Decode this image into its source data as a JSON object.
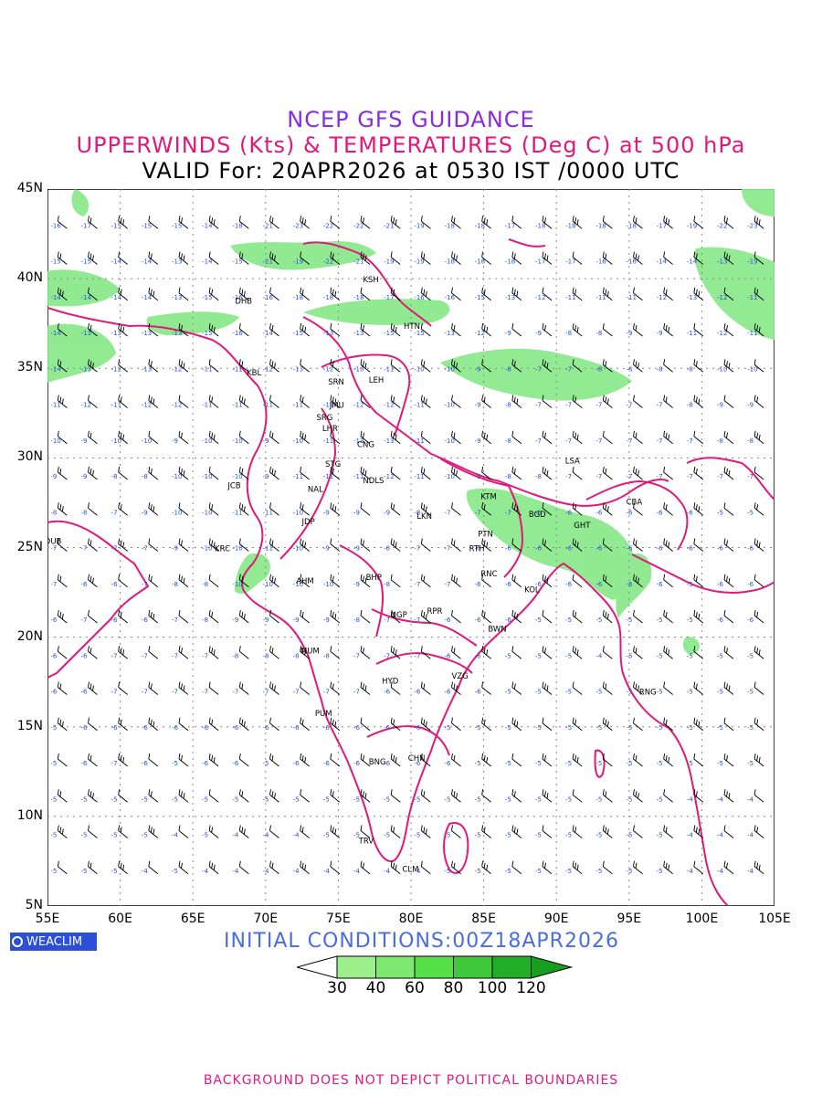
{
  "header": {
    "title": "NCEP GFS GUIDANCE",
    "subtitle": "UPPERWINDS (Kts) & TEMPERATURES (Deg C) at 500 hPa",
    "valid": "VALID For: 20APR2026 at 0530 IST /0000 UTC"
  },
  "axes": {
    "lat_labels": [
      "45N",
      "40N",
      "35N",
      "30N",
      "25N",
      "20N",
      "15N",
      "10N",
      "5N"
    ],
    "lon_labels": [
      "55E",
      "60E",
      "65E",
      "70E",
      "75E",
      "80E",
      "85E",
      "90E",
      "95E",
      "100E",
      "105E"
    ],
    "lat_range": [
      5,
      45
    ],
    "lon_range": [
      55,
      105
    ],
    "grid": "dotted"
  },
  "stations": [
    {
      "code": "KSH",
      "lon": 77.2,
      "lat": 39.8
    },
    {
      "code": "DHB",
      "lon": 68.4,
      "lat": 38.6
    },
    {
      "code": "HTN",
      "lon": 80.0,
      "lat": 37.2
    },
    {
      "code": "KBL",
      "lon": 69.2,
      "lat": 34.6
    },
    {
      "code": "SRN",
      "lon": 74.8,
      "lat": 34.1
    },
    {
      "code": "LEH",
      "lon": 77.6,
      "lat": 34.2
    },
    {
      "code": "JMU",
      "lon": 74.9,
      "lat": 32.8
    },
    {
      "code": "SRG",
      "lon": 74.0,
      "lat": 32.1
    },
    {
      "code": "LHR",
      "lon": 74.4,
      "lat": 31.5
    },
    {
      "code": "CNG",
      "lon": 76.8,
      "lat": 30.6
    },
    {
      "code": "LSA",
      "lon": 91.1,
      "lat": 29.7
    },
    {
      "code": "STG",
      "lon": 74.6,
      "lat": 29.5
    },
    {
      "code": "JCB",
      "lon": 67.9,
      "lat": 28.3
    },
    {
      "code": "NAL",
      "lon": 73.4,
      "lat": 28.1
    },
    {
      "code": "NDLS",
      "lon": 77.2,
      "lat": 28.6
    },
    {
      "code": "CBA",
      "lon": 95.3,
      "lat": 27.4
    },
    {
      "code": "KTM",
      "lon": 85.3,
      "lat": 27.7
    },
    {
      "code": "BGD",
      "lon": 88.6,
      "lat": 26.7
    },
    {
      "code": "GHT",
      "lon": 91.7,
      "lat": 26.1
    },
    {
      "code": "LKN",
      "lon": 80.9,
      "lat": 26.6
    },
    {
      "code": "JDP",
      "lon": 73.0,
      "lat": 26.3
    },
    {
      "code": "PTN",
      "lon": 85.1,
      "lat": 25.6
    },
    {
      "code": "DUB",
      "lon": 55.3,
      "lat": 25.2
    },
    {
      "code": "KRC",
      "lon": 67.0,
      "lat": 24.8
    },
    {
      "code": "RTH",
      "lon": 84.5,
      "lat": 24.8
    },
    {
      "code": "BHP",
      "lon": 77.4,
      "lat": 23.2
    },
    {
      "code": "AHM",
      "lon": 72.6,
      "lat": 23.0
    },
    {
      "code": "RNC",
      "lon": 85.3,
      "lat": 23.4
    },
    {
      "code": "KOL",
      "lon": 88.3,
      "lat": 22.5
    },
    {
      "code": "NGP",
      "lon": 79.1,
      "lat": 21.1
    },
    {
      "code": "RPR",
      "lon": 81.6,
      "lat": 21.3
    },
    {
      "code": "BWN",
      "lon": 85.8,
      "lat": 20.3
    },
    {
      "code": "MUM",
      "lon": 72.9,
      "lat": 19.1
    },
    {
      "code": "HYD",
      "lon": 78.5,
      "lat": 17.4
    },
    {
      "code": "VZG",
      "lon": 83.3,
      "lat": 17.7
    },
    {
      "code": "RNG",
      "lon": 96.2,
      "lat": 16.8
    },
    {
      "code": "PUM",
      "lon": 73.9,
      "lat": 15.6
    },
    {
      "code": "CHN",
      "lon": 80.3,
      "lat": 13.1
    },
    {
      "code": "BNG",
      "lon": 77.6,
      "lat": 12.9
    },
    {
      "code": "TRV",
      "lon": 76.9,
      "lat": 8.5
    },
    {
      "code": "CLM",
      "lon": 79.9,
      "lat": 6.9
    }
  ],
  "temperature_rows": [
    {
      "lat": 43,
      "values": [
        -16,
        -17,
        -15,
        -15,
        -15,
        -14,
        -18,
        -21,
        -23,
        -22,
        -22,
        -21,
        -19,
        -18,
        -18,
        -17,
        -18,
        -18,
        -18,
        -18,
        -17,
        -19,
        -22,
        -23
      ]
    },
    {
      "lat": 41,
      "values": [
        -15,
        -15,
        -14,
        -14,
        -13,
        -14,
        -15,
        -21,
        -19,
        -22,
        -21,
        -19,
        -19,
        -18,
        -18,
        -18,
        -17,
        -17,
        -16,
        -16,
        -14,
        -14,
        -13,
        -19
      ]
    },
    {
      "lat": 39,
      "values": [
        -14,
        -14,
        -14,
        -14,
        -13,
        -15,
        -16,
        -16,
        -18,
        -18,
        -18,
        -17,
        -16,
        -16,
        -15,
        -13,
        -12,
        -11,
        -11,
        -11,
        -12,
        -13,
        -12,
        -11
      ]
    },
    {
      "lat": 37,
      "values": [
        -14,
        -13,
        -13,
        -13,
        -13,
        -15,
        -16,
        -14,
        -15,
        -13,
        -13,
        -15,
        -15,
        -13,
        -12,
        -9,
        -9,
        -8,
        -8,
        -9,
        -9,
        -11,
        -12,
        -11
      ]
    },
    {
      "lat": 35,
      "values": [
        -14,
        -13,
        -12,
        -13,
        -12,
        -11,
        -11,
        -12,
        -13,
        -12,
        -10,
        -11,
        -10,
        -10,
        -9,
        -8,
        -7,
        -7,
        -8,
        -6,
        -8,
        -8,
        -10,
        -10
      ]
    },
    {
      "lat": 33,
      "values": [
        -11,
        -12,
        -11,
        -12,
        -12,
        -11,
        -11,
        -11,
        -11,
        -11,
        -12,
        -12,
        -11,
        -10,
        -9,
        -8,
        -7,
        -7,
        -7,
        -7,
        -7,
        -8,
        -9,
        -9
      ]
    },
    {
      "lat": 31,
      "values": [
        -10,
        -9,
        -10,
        -10,
        -9,
        -10,
        -10,
        -9,
        -10,
        -11,
        -13,
        -13,
        -11,
        -10,
        -9,
        -8,
        -7,
        -7,
        -7,
        -7,
        -7,
        -7,
        -8,
        -8
      ]
    },
    {
      "lat": 29,
      "values": [
        -9,
        -9,
        -8,
        -8,
        -10,
        -10,
        -10,
        -9,
        -11,
        -11,
        -11,
        -12,
        -11,
        -10,
        -9,
        -8,
        -8,
        -7,
        -7,
        -7,
        -7,
        -7,
        -7,
        -7
      ]
    },
    {
      "lat": 27,
      "values": [
        -8,
        -8,
        -7,
        -9,
        -10,
        -10,
        -11,
        -11,
        -10,
        -9,
        -9,
        -9,
        -8,
        -7,
        -7,
        -7,
        -6,
        -6,
        -6,
        -6,
        -6,
        -6,
        -5,
        -5
      ]
    },
    {
      "lat": 25,
      "values": [
        -7,
        -7,
        -7,
        -7,
        -9,
        -10,
        -10,
        -11,
        -10,
        -9,
        -9,
        -8,
        -7,
        -7,
        -6,
        -6,
        -6,
        -6,
        -6,
        -6,
        -6,
        -6,
        -6,
        -6
      ]
    },
    {
      "lat": 23,
      "values": [
        -7,
        -6,
        -6,
        -7,
        -8,
        -8,
        -10,
        -10,
        -10,
        -10,
        -9,
        -8,
        -7,
        -7,
        -6,
        -6,
        -6,
        -6,
        -6,
        -6,
        -6,
        -5,
        -6,
        -6
      ]
    },
    {
      "lat": 21,
      "values": [
        -6,
        -7,
        -6,
        -6,
        -7,
        -8,
        -9,
        -9,
        -9,
        -9,
        -8,
        -7,
        -7,
        -6,
        -6,
        -6,
        -5,
        -5,
        -5,
        -5,
        -5,
        -5,
        -6,
        -6
      ]
    },
    {
      "lat": 19,
      "values": [
        -6,
        -6,
        -7,
        -7,
        -7,
        -7,
        -8,
        -8,
        -8,
        -8,
        -7,
        -7,
        -7,
        -6,
        -6,
        -5,
        -5,
        -5,
        -4,
        -5,
        -5,
        -5,
        -5,
        -5
      ]
    },
    {
      "lat": 17,
      "values": [
        -6,
        -6,
        -7,
        -7,
        -7,
        -7,
        -7,
        -7,
        -7,
        -7,
        -7,
        -6,
        -6,
        -6,
        -6,
        -5,
        -5,
        -5,
        -5,
        -5,
        -5,
        -5,
        -5,
        -5
      ]
    },
    {
      "lat": 15,
      "values": [
        -5,
        -6,
        -6,
        -6,
        -6,
        -6,
        -6,
        -6,
        -6,
        -6,
        -6,
        -6,
        -6,
        -5,
        -5,
        -5,
        -5,
        -5,
        -5,
        -5,
        -5,
        -5,
        -5,
        -5
      ]
    },
    {
      "lat": 13,
      "values": [
        -5,
        -6,
        -7,
        -6,
        -5,
        -6,
        -6,
        -5,
        -6,
        -6,
        -6,
        -6,
        -6,
        -6,
        -5,
        -5,
        -5,
        -5,
        -5,
        -5,
        -5,
        -5,
        -5,
        -5
      ]
    },
    {
      "lat": 11,
      "values": [
        -5,
        -5,
        -5,
        -5,
        -5,
        -5,
        -5,
        -5,
        -5,
        -5,
        -5,
        -5,
        -5,
        -5,
        -5,
        -5,
        -5,
        -5,
        -5,
        -5,
        -5,
        -4,
        -4,
        -4
      ]
    },
    {
      "lat": 9,
      "values": [
        -5,
        -5,
        -5,
        -5,
        -4,
        -5,
        -4,
        -4,
        -4,
        -5,
        -5,
        -5,
        -5,
        -5,
        -5,
        -5,
        -5,
        -5,
        -5,
        -5,
        -5,
        -4,
        -4,
        -4
      ]
    },
    {
      "lat": 7,
      "values": [
        -5,
        -5,
        -5,
        -4,
        -5,
        -4,
        -4,
        -4,
        -4,
        -4,
        -4,
        -4,
        -4,
        -5,
        -5,
        -5,
        -5,
        -5,
        -5,
        -5,
        -5,
        -4,
        -4,
        -4
      ]
    }
  ],
  "legend": {
    "labels": [
      "30",
      "40",
      "60",
      "80",
      "100",
      "120"
    ],
    "colors": [
      "#ffffff",
      "#9bf08c",
      "#7ee870",
      "#57e04a",
      "#3ec83a",
      "#23ae28",
      "#169e1e"
    ]
  },
  "initial_conditions": "INITIAL CONDITIONS:00Z18APR2026",
  "brand": "WEACLIM",
  "footer": "BACKGROUND DOES NOT DEPICT POLITICAL BOUNDARIES",
  "colors": {
    "title": "#8a2be2",
    "subtitle": "#e0197a",
    "boundary": "#e0197a",
    "temperature": "#2b4fd8",
    "wind_barb": "#000000",
    "jet_fill": "#86e887"
  }
}
